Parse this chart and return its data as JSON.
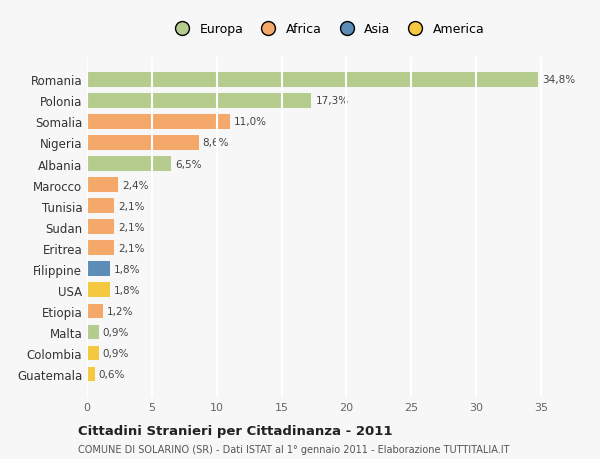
{
  "countries": [
    "Romania",
    "Polonia",
    "Somalia",
    "Nigeria",
    "Albania",
    "Marocco",
    "Tunisia",
    "Sudan",
    "Eritrea",
    "Filippine",
    "USA",
    "Etiopia",
    "Malta",
    "Colombia",
    "Guatemala"
  ],
  "values": [
    34.8,
    17.3,
    11.0,
    8.6,
    6.5,
    2.4,
    2.1,
    2.1,
    2.1,
    1.8,
    1.8,
    1.2,
    0.9,
    0.9,
    0.6
  ],
  "labels": [
    "34,8%",
    "17,3%",
    "11,0%",
    "8,6%",
    "6,5%",
    "2,4%",
    "2,1%",
    "2,1%",
    "2,1%",
    "1,8%",
    "1,8%",
    "1,2%",
    "0,9%",
    "0,9%",
    "0,6%"
  ],
  "continents": [
    "Europa",
    "Europa",
    "Africa",
    "Africa",
    "Europa",
    "Africa",
    "Africa",
    "Africa",
    "Africa",
    "Asia",
    "America",
    "Africa",
    "Europa",
    "America",
    "America"
  ],
  "continent_colors": {
    "Europa": "#b5cc8e",
    "Africa": "#f4a96b",
    "Asia": "#5b8db8",
    "America": "#f5c842"
  },
  "legend_items": [
    "Europa",
    "Africa",
    "Asia",
    "America"
  ],
  "legend_colors": [
    "#b5cc8e",
    "#f4a96b",
    "#5b8db8",
    "#f5c842"
  ],
  "title_main": "Cittadini Stranieri per Cittadinanza - 2011",
  "title_sub": "COMUNE DI SOLARINO (SR) - Dati ISTAT al 1° gennaio 2011 - Elaborazione TUTTITALIA.IT",
  "xlim": [
    0,
    37
  ],
  "xticks": [
    0,
    5,
    10,
    15,
    20,
    25,
    30,
    35
  ],
  "background_color": "#f7f7f7",
  "grid_color": "#ffffff",
  "bar_height": 0.7
}
